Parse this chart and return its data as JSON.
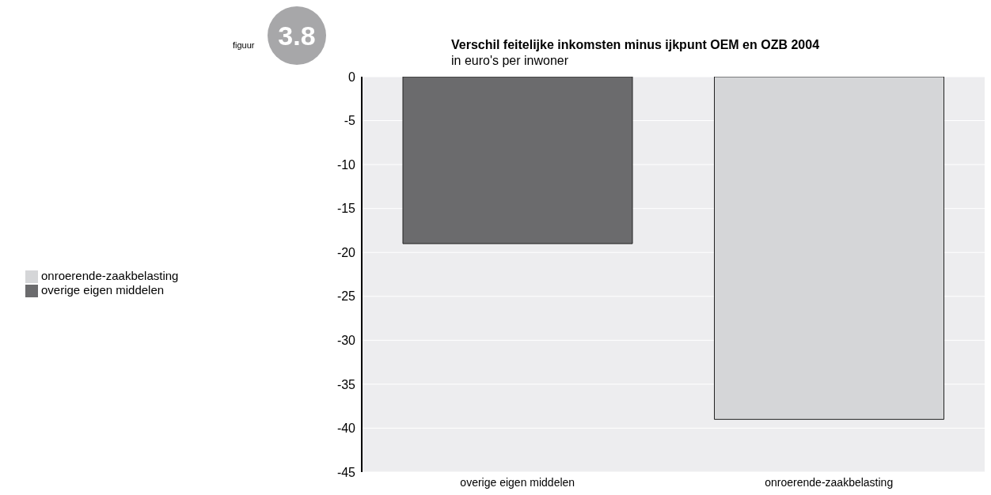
{
  "chart_data": {
    "type": "bar",
    "title": "Verschil feitelijke inkomsten minus ijkpunt OEM en OZB 2004",
    "subtitle": "in euro's per inwoner",
    "annotations": [
      "figuur",
      "3.8"
    ],
    "categories": [
      "overige eigen middelen",
      "onroerende-zaakbelasting"
    ],
    "series": [
      {
        "name": "overige eigen middelen",
        "color": "#6b6b6d",
        "values": [
          -19,
          null
        ]
      },
      {
        "name": "onroerende-zaakbelasting",
        "color": "#d5d6d8",
        "values": [
          null,
          -39
        ]
      }
    ],
    "ylim": [
      -45,
      0
    ],
    "yticks": [
      0,
      -5,
      -10,
      -15,
      -20,
      -25,
      -30,
      -35,
      -40,
      -45
    ],
    "grid": "y",
    "legend": "left"
  }
}
